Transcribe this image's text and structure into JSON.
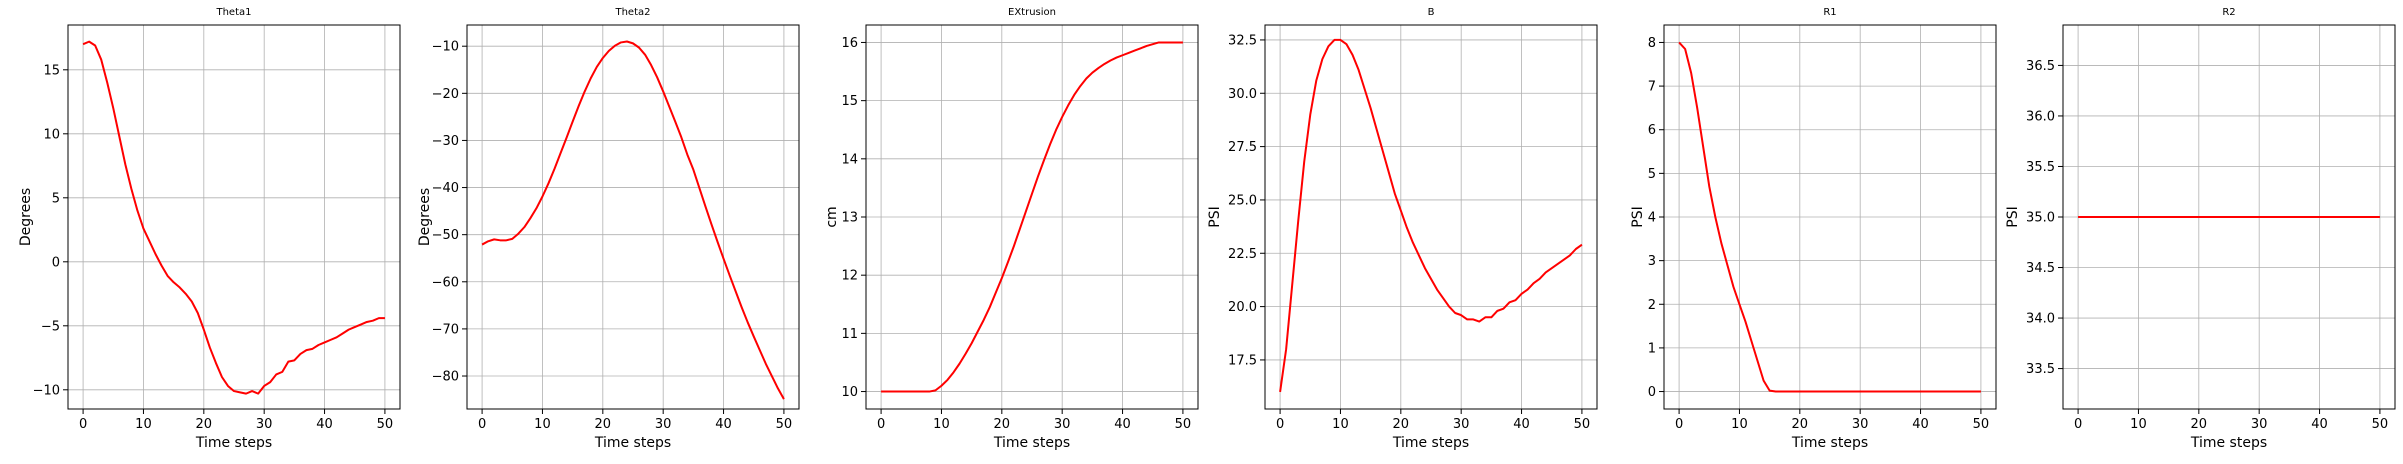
{
  "chart_data": [
    {
      "type": "line",
      "title": "Theta1",
      "xlabel": "Time steps",
      "ylabel": "Degrees",
      "xlim": [
        -2.5,
        52.5
      ],
      "ylim": [
        -11.5,
        18.5
      ],
      "xticks": [
        0,
        10,
        20,
        30,
        40,
        50
      ],
      "yticks": [
        -10,
        -5,
        0,
        5,
        10,
        15
      ],
      "grid": true,
      "color": "#ff0000",
      "series": [
        {
          "x": [
            0,
            1,
            2,
            3,
            4,
            5,
            6,
            7,
            8,
            9,
            10,
            11,
            12,
            13,
            14,
            15,
            16,
            17,
            18,
            19,
            20,
            21,
            22,
            23,
            24,
            25,
            26,
            27,
            28,
            29,
            30,
            31,
            32,
            33,
            34,
            35,
            36,
            37,
            38,
            39,
            40,
            41,
            42,
            43,
            44,
            45,
            46,
            47,
            48,
            49,
            50
          ],
          "y": [
            17.0,
            17.2,
            16.9,
            15.8,
            14.0,
            12.0,
            9.8,
            7.6,
            5.7,
            4.0,
            2.6,
            1.6,
            0.6,
            -0.3,
            -1.1,
            -1.6,
            -2.0,
            -2.5,
            -3.1,
            -4.0,
            -5.3,
            -6.7,
            -7.9,
            -9.0,
            -9.7,
            -10.1,
            -10.2,
            -10.3,
            -10.1,
            -10.3,
            -9.7,
            -9.4,
            -8.8,
            -8.6,
            -7.8,
            -7.7,
            -7.2,
            -6.9,
            -6.8,
            -6.5,
            -6.3,
            -6.1,
            -5.9,
            -5.6,
            -5.3,
            -5.1,
            -4.9,
            -4.7,
            -4.6,
            -4.4,
            -4.4
          ]
        }
      ]
    },
    {
      "type": "line",
      "title": "Theta2",
      "xlabel": "Time steps",
      "ylabel": "Degrees",
      "xlim": [
        -2.5,
        52.5
      ],
      "ylim": [
        -87,
        -5.5
      ],
      "xticks": [
        0,
        10,
        20,
        30,
        40,
        50
      ],
      "yticks": [
        -80,
        -70,
        -60,
        -50,
        -40,
        -30,
        -20,
        -10
      ],
      "grid": true,
      "color": "#ff0000",
      "series": [
        {
          "x": [
            0,
            1,
            2,
            3,
            4,
            5,
            6,
            7,
            8,
            9,
            10,
            11,
            12,
            13,
            14,
            15,
            16,
            17,
            18,
            19,
            20,
            21,
            22,
            23,
            24,
            25,
            26,
            27,
            28,
            29,
            30,
            31,
            32,
            33,
            34,
            35,
            36,
            37,
            38,
            39,
            40,
            41,
            42,
            43,
            44,
            45,
            46,
            47,
            48,
            49,
            50
          ],
          "y": [
            -52.1,
            -51.4,
            -51.0,
            -51.2,
            -51.2,
            -50.9,
            -49.8,
            -48.4,
            -46.5,
            -44.4,
            -41.9,
            -39.1,
            -36.0,
            -32.7,
            -29.4,
            -26.0,
            -22.7,
            -19.6,
            -16.8,
            -14.4,
            -12.5,
            -11.0,
            -9.9,
            -9.2,
            -9.0,
            -9.4,
            -10.3,
            -11.8,
            -14.0,
            -16.6,
            -19.6,
            -22.8,
            -26.0,
            -29.3,
            -33.0,
            -36.2,
            -40.1,
            -44.0,
            -47.8,
            -51.5,
            -55.1,
            -58.6,
            -62.0,
            -65.4,
            -68.6,
            -71.6,
            -74.5,
            -77.4,
            -80.0,
            -82.6,
            -84.9
          ]
        }
      ]
    },
    {
      "type": "line",
      "title": "EXtrusion",
      "xlabel": "Time steps",
      "ylabel": "cm",
      "xlim": [
        -2.5,
        52.5
      ],
      "ylim": [
        9.7,
        16.3
      ],
      "xticks": [
        0,
        10,
        20,
        30,
        40,
        50
      ],
      "yticks": [
        10,
        11,
        12,
        13,
        14,
        15,
        16
      ],
      "grid": true,
      "color": "#ff0000",
      "series": [
        {
          "x": [
            0,
            1,
            2,
            3,
            4,
            5,
            6,
            7,
            8,
            9,
            10,
            11,
            12,
            13,
            14,
            15,
            16,
            17,
            18,
            19,
            20,
            21,
            22,
            23,
            24,
            25,
            26,
            27,
            28,
            29,
            30,
            31,
            32,
            33,
            34,
            35,
            36,
            37,
            38,
            39,
            40,
            41,
            42,
            43,
            44,
            45,
            46,
            47,
            48,
            49,
            50
          ],
          "y": [
            10.0,
            10.0,
            10.0,
            10.0,
            10.0,
            10.0,
            10.0,
            10.0,
            10.0,
            10.02,
            10.1,
            10.2,
            10.33,
            10.48,
            10.65,
            10.83,
            11.03,
            11.23,
            11.45,
            11.7,
            11.95,
            12.22,
            12.5,
            12.8,
            13.1,
            13.4,
            13.7,
            13.98,
            14.25,
            14.5,
            14.72,
            14.92,
            15.1,
            15.25,
            15.38,
            15.48,
            15.56,
            15.63,
            15.69,
            15.74,
            15.78,
            15.82,
            15.86,
            15.9,
            15.94,
            15.97,
            16.0,
            16.0,
            16.0,
            16.0,
            16.0
          ]
        }
      ]
    },
    {
      "type": "line",
      "title": "B",
      "xlabel": "Time steps",
      "ylabel": "PSI",
      "xlim": [
        -2.5,
        52.5
      ],
      "ylim": [
        15.2,
        33.2
      ],
      "xticks": [
        0,
        10,
        20,
        30,
        40,
        50
      ],
      "yticks": [
        17.5,
        20.0,
        22.5,
        25.0,
        27.5,
        30.0,
        32.5
      ],
      "grid": true,
      "color": "#ff0000",
      "series": [
        {
          "x": [
            0,
            1,
            2,
            3,
            4,
            5,
            6,
            7,
            8,
            9,
            10,
            11,
            12,
            13,
            14,
            15,
            16,
            17,
            18,
            19,
            20,
            21,
            22,
            23,
            24,
            25,
            26,
            27,
            28,
            29,
            30,
            31,
            32,
            33,
            34,
            35,
            36,
            37,
            38,
            39,
            40,
            41,
            42,
            43,
            44,
            45,
            46,
            47,
            48,
            49,
            50
          ],
          "y": [
            16.0,
            18.0,
            21.0,
            24.0,
            26.8,
            29.0,
            30.6,
            31.6,
            32.2,
            32.5,
            32.5,
            32.3,
            31.8,
            31.1,
            30.2,
            29.3,
            28.3,
            27.3,
            26.3,
            25.3,
            24.5,
            23.7,
            23.0,
            22.4,
            21.8,
            21.3,
            20.8,
            20.4,
            20.0,
            19.7,
            19.6,
            19.4,
            19.4,
            19.3,
            19.5,
            19.5,
            19.8,
            19.9,
            20.2,
            20.3,
            20.6,
            20.8,
            21.1,
            21.3,
            21.6,
            21.8,
            22.0,
            22.2,
            22.4,
            22.7,
            22.9
          ]
        }
      ]
    },
    {
      "type": "line",
      "title": "R1",
      "xlabel": "Time steps",
      "ylabel": "PSI",
      "xlim": [
        -2.5,
        52.5
      ],
      "ylim": [
        -0.4,
        8.4
      ],
      "xticks": [
        0,
        10,
        20,
        30,
        40,
        50
      ],
      "yticks": [
        0,
        1,
        2,
        3,
        4,
        5,
        6,
        7,
        8
      ],
      "grid": true,
      "color": "#ff0000",
      "series": [
        {
          "x": [
            0,
            1,
            2,
            3,
            4,
            5,
            6,
            7,
            8,
            9,
            10,
            11,
            12,
            13,
            14,
            15,
            16,
            17,
            18,
            19,
            20,
            21,
            22,
            23,
            24,
            25,
            26,
            27,
            28,
            29,
            30,
            31,
            32,
            33,
            34,
            35,
            36,
            37,
            38,
            39,
            40,
            41,
            42,
            43,
            44,
            45,
            46,
            47,
            48,
            49,
            50
          ],
          "y": [
            8.0,
            7.85,
            7.3,
            6.5,
            5.6,
            4.7,
            4.0,
            3.4,
            2.9,
            2.4,
            2.0,
            1.6,
            1.15,
            0.7,
            0.25,
            0.02,
            0.0,
            0.0,
            0.0,
            0.0,
            0.0,
            0.0,
            0.0,
            0.0,
            0.0,
            0.0,
            0.0,
            0.0,
            0.0,
            0.0,
            0.0,
            0.0,
            0.0,
            0.0,
            0.0,
            0.0,
            0.0,
            0.0,
            0.0,
            0.0,
            0.0,
            0.0,
            0.0,
            0.0,
            0.0,
            0.0,
            0.0,
            0.0,
            0.0,
            0.0,
            0.0
          ]
        }
      ]
    },
    {
      "type": "line",
      "title": "R2",
      "xlabel": "Time steps",
      "ylabel": "PSI",
      "xlim": [
        -2.5,
        52.5
      ],
      "ylim": [
        33.1,
        36.9
      ],
      "xticks": [
        0,
        10,
        20,
        30,
        40,
        50
      ],
      "yticks": [
        33.5,
        34.0,
        34.5,
        35.0,
        35.5,
        36.0,
        36.5
      ],
      "grid": true,
      "color": "#ff0000",
      "series": [
        {
          "x": [
            0,
            50
          ],
          "y": [
            35.0,
            35.0
          ]
        }
      ]
    }
  ]
}
